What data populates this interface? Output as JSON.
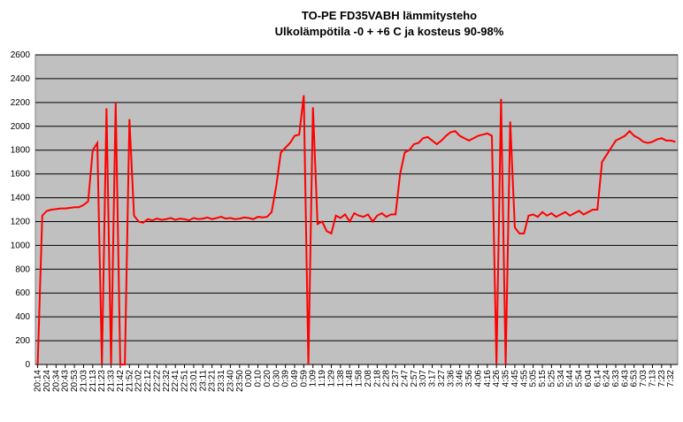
{
  "chart_data": {
    "type": "line",
    "title": "TO-PE FD35VABH lämmitysteho",
    "subtitle": "Ulkolämpötila  -0 + +6 C ja kosteus 90-98%",
    "categories": [
      "20:14",
      null,
      "20:24",
      null,
      "20:34",
      null,
      "20:43",
      null,
      "20:53",
      null,
      "21:03",
      null,
      "21:13",
      null,
      "21:23",
      null,
      "21:33",
      null,
      "21:42",
      null,
      "21:52",
      null,
      "22:02",
      null,
      "22:12",
      null,
      "22:22",
      null,
      "22:32",
      null,
      "22:41",
      null,
      "22:51",
      null,
      "23:01",
      null,
      "23:11",
      null,
      "23:21",
      null,
      "23:31",
      null,
      "23:40",
      null,
      "23:50",
      null,
      "0:00",
      null,
      "0:10",
      null,
      "0:20",
      null,
      "0:30",
      null,
      "0:39",
      null,
      "0:49",
      null,
      "0:59",
      null,
      "1:09",
      null,
      "1:19",
      null,
      "1:29",
      null,
      "1:38",
      null,
      "1:48",
      null,
      "1:58",
      null,
      "2:08",
      null,
      "2:18",
      null,
      "2:28",
      null,
      "2:37",
      null,
      "2:47",
      null,
      "2:57",
      null,
      "3:07",
      null,
      "3:17",
      null,
      "3:27",
      null,
      "3:36",
      null,
      "3:46",
      null,
      "3:56",
      null,
      "4:06",
      null,
      "4:16",
      null,
      "4:26",
      null,
      "4:35",
      null,
      "4:45",
      null,
      "4:55",
      null,
      "5:05",
      null,
      "5:15",
      null,
      "5:25",
      null,
      "5:34",
      null,
      "5:44",
      null,
      "5:54",
      null,
      "6:04",
      null,
      "6:14",
      null,
      "6:24",
      null,
      "6:33",
      null,
      "6:43",
      null,
      "6:53",
      null,
      "7:03",
      null,
      "7:13",
      null,
      "7:23",
      null,
      "7:32",
      null
    ],
    "series": [
      {
        "name": "lämmitysteho",
        "color": "#ff0000",
        "values": [
          0,
          1250,
          1290,
          1300,
          1305,
          1310,
          1310,
          1315,
          1320,
          1320,
          1340,
          1370,
          1800,
          1860,
          0,
          2150,
          0,
          2200,
          0,
          0,
          2060,
          1250,
          1200,
          1190,
          1220,
          1210,
          1225,
          1215,
          1220,
          1230,
          1215,
          1225,
          1220,
          1210,
          1230,
          1220,
          1225,
          1235,
          1220,
          1230,
          1240,
          1225,
          1230,
          1220,
          1225,
          1235,
          1230,
          1220,
          1240,
          1235,
          1240,
          1280,
          1500,
          1780,
          1820,
          1860,
          1920,
          1930,
          2260,
          0,
          2160,
          1180,
          1200,
          1120,
          1100,
          1250,
          1230,
          1260,
          1200,
          1270,
          1250,
          1240,
          1260,
          1200,
          1250,
          1270,
          1240,
          1260,
          1260,
          1600,
          1780,
          1800,
          1850,
          1860,
          1900,
          1910,
          1880,
          1850,
          1880,
          1920,
          1950,
          1960,
          1920,
          1900,
          1880,
          1900,
          1920,
          1930,
          1940,
          1920,
          0,
          2230,
          0,
          2040,
          1150,
          1100,
          1100,
          1250,
          1260,
          1240,
          1280,
          1250,
          1270,
          1240,
          1260,
          1280,
          1250,
          1270,
          1290,
          1260,
          1280,
          1300,
          1300,
          1700,
          1760,
          1820,
          1880,
          1900,
          1920,
          1960,
          1920,
          1900,
          1870,
          1860,
          1870,
          1890,
          1900,
          1880,
          1880,
          1870
        ]
      }
    ],
    "ylim": [
      0,
      2600
    ],
    "yticks": [
      0,
      200,
      400,
      600,
      800,
      1000,
      1200,
      1400,
      1600,
      1800,
      2000,
      2200,
      2400,
      2600
    ],
    "grid": true,
    "background": "#c0c0c0"
  }
}
